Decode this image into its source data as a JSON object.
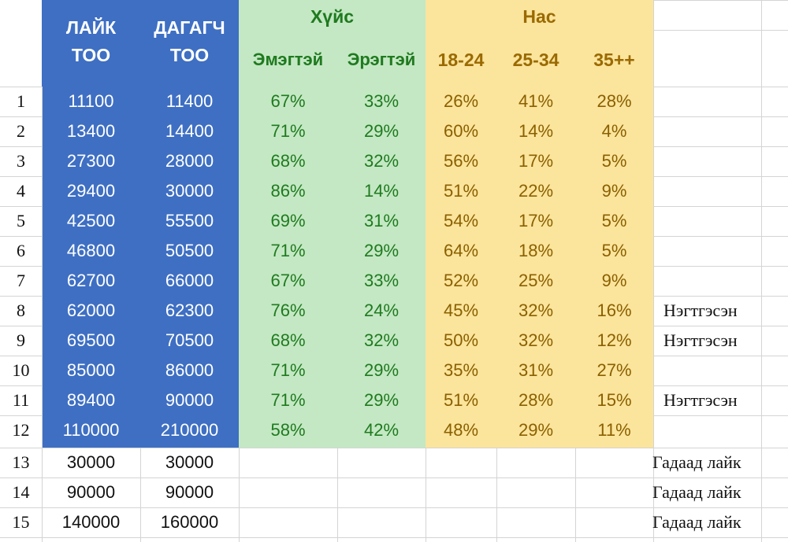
{
  "headers": {
    "likes_line1": "ЛАЙК",
    "likes_line2": "ТОО",
    "followers_line1": "ДАГАГЧ",
    "followers_line2": "ТОО",
    "gender": "Хүйс",
    "female": "Эмэгтэй",
    "male": "Эрэгтэй",
    "age": "Нас",
    "age1": "18-24",
    "age2": "25-34",
    "age3": "35++"
  },
  "rows": [
    {
      "n": "1",
      "likes": "11100",
      "followers": "11400",
      "female": "67%",
      "male": "33%",
      "a1": "26%",
      "a2": "41%",
      "a3": "28%",
      "note": ""
    },
    {
      "n": "2",
      "likes": "13400",
      "followers": "14400",
      "female": "71%",
      "male": "29%",
      "a1": "60%",
      "a2": "14%",
      "a3": "4%",
      "note": ""
    },
    {
      "n": "3",
      "likes": "27300",
      "followers": "28000",
      "female": "68%",
      "male": "32%",
      "a1": "56%",
      "a2": "17%",
      "a3": "5%",
      "note": ""
    },
    {
      "n": "4",
      "likes": "29400",
      "followers": "30000",
      "female": "86%",
      "male": "14%",
      "a1": "51%",
      "a2": "22%",
      "a3": "9%",
      "note": ""
    },
    {
      "n": "5",
      "likes": "42500",
      "followers": "55500",
      "female": "69%",
      "male": "31%",
      "a1": "54%",
      "a2": "17%",
      "a3": "5%",
      "note": ""
    },
    {
      "n": "6",
      "likes": "46800",
      "followers": "50500",
      "female": "71%",
      "male": "29%",
      "a1": "64%",
      "a2": "18%",
      "a3": "5%",
      "note": ""
    },
    {
      "n": "7",
      "likes": "62700",
      "followers": "66000",
      "female": "67%",
      "male": "33%",
      "a1": "52%",
      "a2": "25%",
      "a3": "9%",
      "note": ""
    },
    {
      "n": "8",
      "likes": "62000",
      "followers": "62300",
      "female": "76%",
      "male": "24%",
      "a1": "45%",
      "a2": "32%",
      "a3": "16%",
      "note": "Нэгтгэсэн"
    },
    {
      "n": "9",
      "likes": "69500",
      "followers": "70500",
      "female": "68%",
      "male": "32%",
      "a1": "50%",
      "a2": "32%",
      "a3": "12%",
      "note": "Нэгтгэсэн"
    },
    {
      "n": "10",
      "likes": "85000",
      "followers": "86000",
      "female": "71%",
      "male": "29%",
      "a1": "35%",
      "a2": "31%",
      "a3": "27%",
      "note": ""
    },
    {
      "n": "11",
      "likes": "89400",
      "followers": "90000",
      "female": "71%",
      "male": "29%",
      "a1": "51%",
      "a2": "28%",
      "a3": "15%",
      "note": "Нэгтгэсэн"
    },
    {
      "n": "12",
      "likes": "110000",
      "followers": "210000",
      "female": "58%",
      "male": "42%",
      "a1": "48%",
      "a2": "29%",
      "a3": "11%",
      "note": ""
    },
    {
      "n": "13",
      "likes": "30000",
      "followers": "30000",
      "female": "",
      "male": "",
      "a1": "",
      "a2": "",
      "a3": "",
      "note": "Гадаад лайк"
    },
    {
      "n": "14",
      "likes": "90000",
      "followers": "90000",
      "female": "",
      "male": "",
      "a1": "",
      "a2": "",
      "a3": "",
      "note": "Гадаад лайк"
    },
    {
      "n": "15",
      "likes": "140000",
      "followers": "160000",
      "female": "",
      "male": "",
      "a1": "",
      "a2": "",
      "a3": "",
      "note": "Гадаад лайк"
    }
  ],
  "colors": {
    "blue_block": "#3e6fc3",
    "green_block": "#c4e8c4",
    "yellow_block": "#fbe49c",
    "green_text": "#1f7a1f",
    "yellow_text": "#8a6000"
  }
}
